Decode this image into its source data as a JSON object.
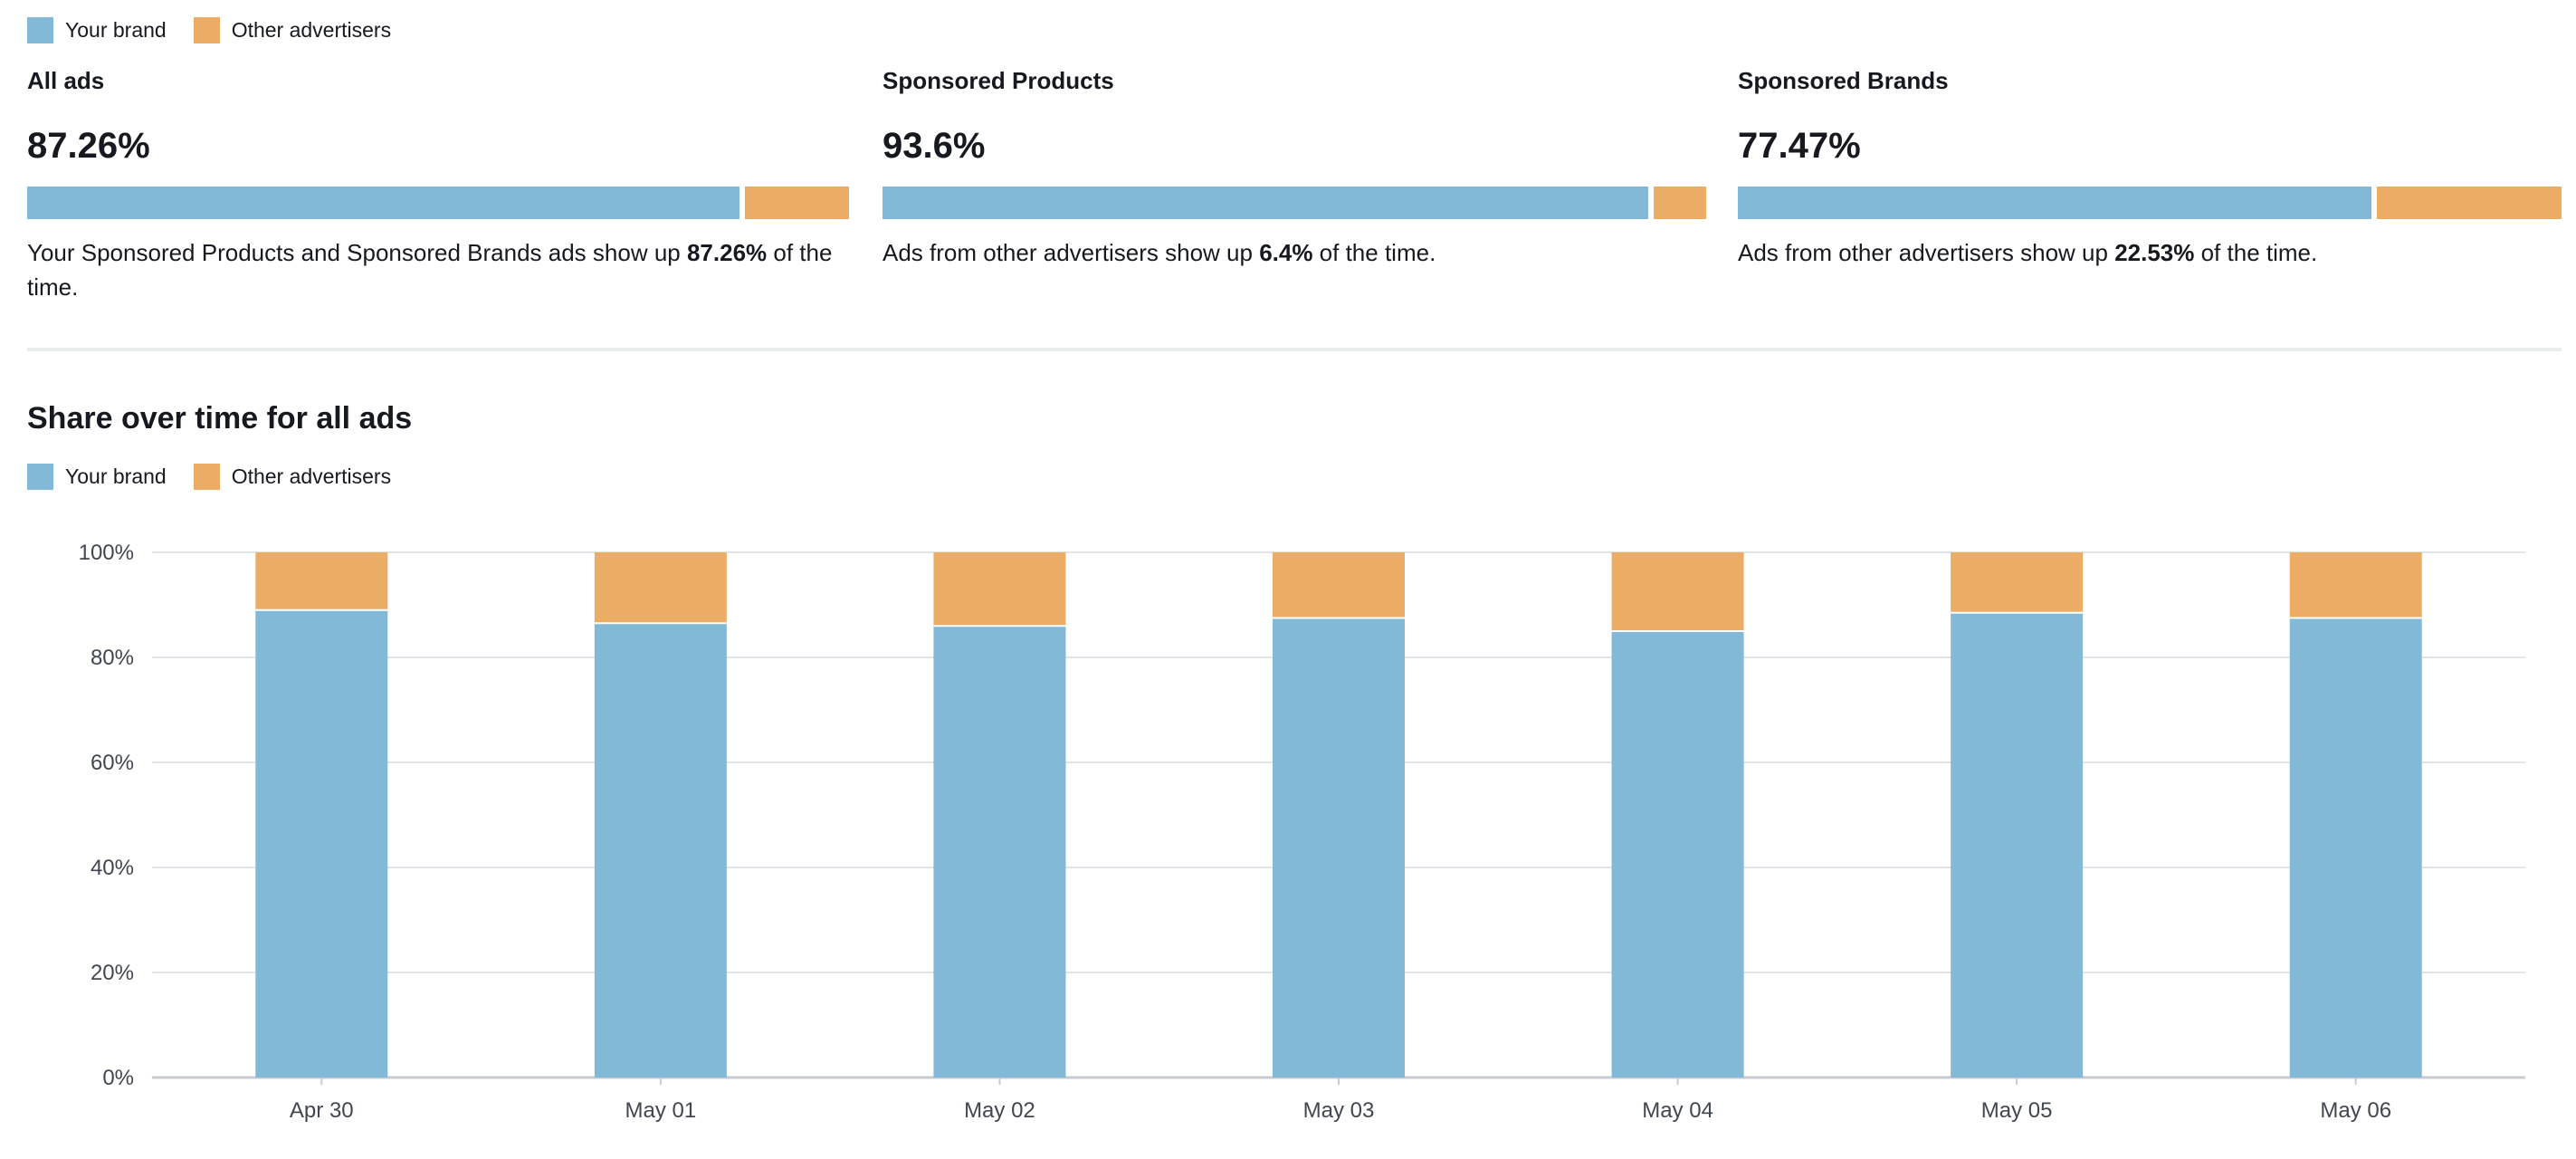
{
  "colors": {
    "your_brand": "#82b9d6",
    "other": "#ebad66",
    "grid": "#e1e4e8",
    "axis": "#c7cbd1"
  },
  "legend": {
    "your_brand": "Your brand",
    "other": "Other advertisers"
  },
  "cards": [
    {
      "title": "All ads",
      "value": "87.26%",
      "share": 87.26,
      "desc_pre": "Your Sponsored Products and Sponsored Brands ads show up ",
      "desc_bold": "87.26%",
      "desc_post": " of the time."
    },
    {
      "title": "Sponsored Products",
      "value": "93.6%",
      "share": 93.6,
      "desc_pre": "Ads from other advertisers show up ",
      "desc_bold": "6.4%",
      "desc_post": " of the time."
    },
    {
      "title": "Sponsored Brands",
      "value": "77.47%",
      "share": 77.47,
      "desc_pre": "Ads from other advertisers show up ",
      "desc_bold": "22.53%",
      "desc_post": " of the time."
    }
  ],
  "chart_title": "Share over time for all ads",
  "chart_data": {
    "type": "bar",
    "stacked": true,
    "categories": [
      "Apr 30",
      "May 01",
      "May 02",
      "May 03",
      "May 04",
      "May 05",
      "May 06"
    ],
    "series": [
      {
        "name": "Your brand",
        "values": [
          89,
          86.5,
          86,
          87.5,
          85,
          88.5,
          87.5
        ]
      },
      {
        "name": "Other advertisers",
        "values": [
          11,
          13.5,
          14,
          12.5,
          15,
          11.5,
          12.5
        ]
      }
    ],
    "ylim": [
      0,
      100
    ],
    "yticks": [
      "0%",
      "20%",
      "40%",
      "60%",
      "80%",
      "100%"
    ],
    "grid": true,
    "legend_position": "top-left"
  }
}
